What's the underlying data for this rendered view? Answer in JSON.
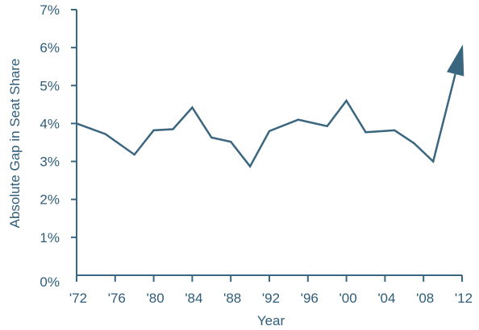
{
  "colors": {
    "line": "#3a6680",
    "text": "#2f5d79",
    "axis": "#3a6680"
  },
  "chart_data": {
    "type": "line",
    "title": "",
    "xlabel": "Year",
    "ylabel": "Absolute Gap in Seat Share",
    "xlim": [
      1972,
      2012
    ],
    "ylim": [
      0,
      7
    ],
    "grid": false,
    "x_ticks": [
      1972,
      1976,
      1980,
      1984,
      1988,
      1992,
      1996,
      2000,
      2004,
      2008,
      2012
    ],
    "x_tick_labels": [
      "'72",
      "'76",
      "'80",
      "'84",
      "'88",
      "'92",
      "'96",
      "'00",
      "'04",
      "'08",
      "'12"
    ],
    "y_ticks": [
      0,
      1,
      2,
      3,
      4,
      5,
      6,
      7
    ],
    "y_tick_labels": [
      "0%",
      "1%",
      "2%",
      "3%",
      "4%",
      "5%",
      "6%",
      "7%"
    ],
    "series": [
      {
        "x": [
          1972,
          1975,
          1978,
          1980,
          1982,
          1984,
          1986,
          1988,
          1990,
          1992,
          1995,
          1998,
          2000,
          2002,
          2005,
          2007,
          2009,
          2012
        ],
        "y": [
          4.0,
          3.72,
          3.18,
          3.82,
          3.85,
          4.42,
          3.63,
          3.52,
          2.87,
          3.8,
          4.1,
          3.93,
          4.6,
          3.77,
          3.82,
          3.48,
          3.0,
          6.0
        ],
        "end_marker": "arrow"
      }
    ]
  }
}
